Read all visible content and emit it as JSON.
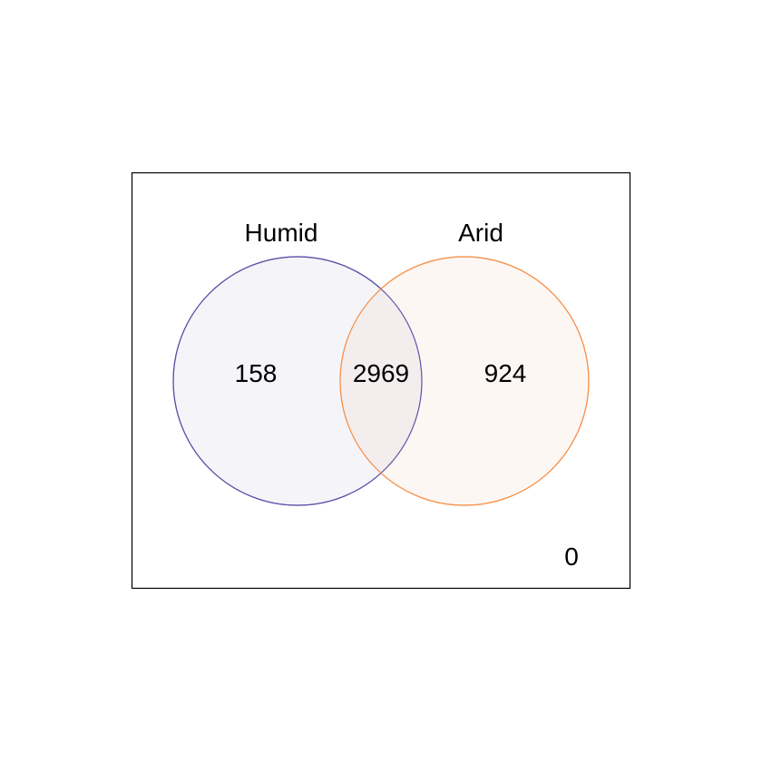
{
  "venn": {
    "sets": [
      {
        "name": "Humid",
        "color": "#5b54a8",
        "fill": "#f5f4f9"
      },
      {
        "name": "Arid",
        "color": "#f7914a",
        "fill": "#fdf7f4"
      }
    ],
    "overlap_fill": "#f3edee",
    "regions": {
      "only_humid": "158",
      "both": "2969",
      "only_arid": "924",
      "neither": "0"
    }
  }
}
